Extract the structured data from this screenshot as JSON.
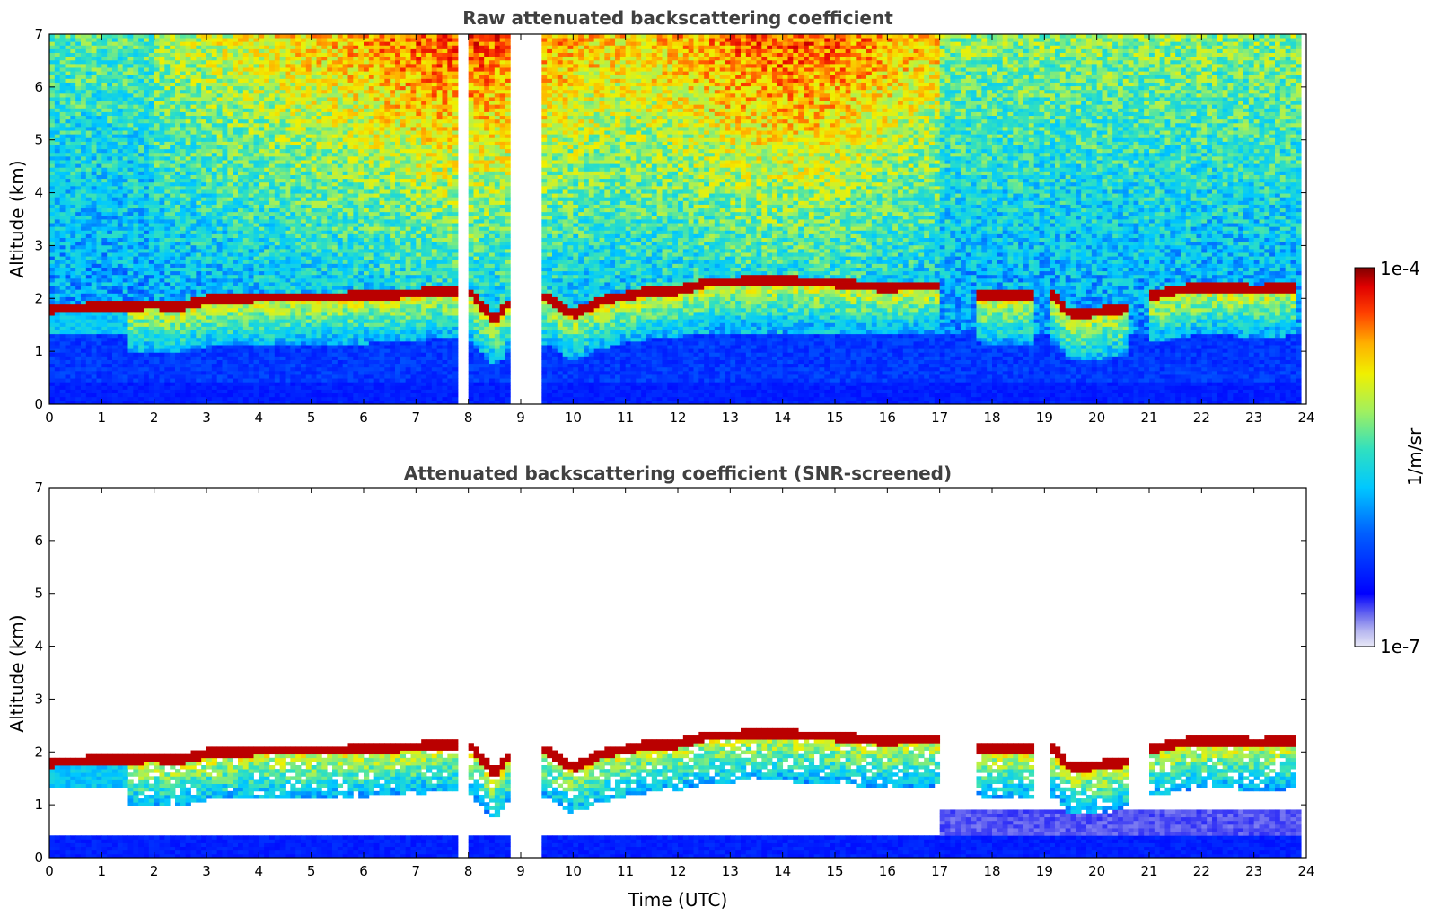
{
  "chart_data": [
    {
      "type": "heatmap",
      "title": "Raw attenuated backscattering coefficient",
      "xlabel": "",
      "ylabel": "Altitude (km)",
      "xlim": [
        0,
        24
      ],
      "ylim": [
        0,
        7
      ],
      "x_ticks": [
        "0",
        "1",
        "2",
        "3",
        "4",
        "5",
        "6",
        "7",
        "8",
        "9",
        "10",
        "11",
        "12",
        "13",
        "14",
        "15",
        "16",
        "17",
        "18",
        "19",
        "20",
        "21",
        "22",
        "23",
        "24"
      ],
      "y_ticks": [
        "0",
        "1",
        "2",
        "3",
        "4",
        "5",
        "6",
        "7"
      ],
      "data_gaps_utc": [
        [
          7.78,
          7.86
        ],
        [
          7.92,
          8.02
        ],
        [
          8.85,
          9.4
        ]
      ],
      "cloud_top_km": {
        "x": [
          0,
          1,
          2,
          2.5,
          3,
          4,
          5,
          6,
          7,
          7.5,
          8,
          8.5,
          8.8,
          9.5,
          10,
          10.5,
          11,
          11.5,
          12,
          12.5,
          13,
          13.5,
          14,
          14.5,
          15,
          15.5,
          16,
          16.5,
          17,
          17.8,
          18.5,
          19.2,
          19.5,
          20,
          20.5,
          21,
          21.5,
          22,
          22.5,
          23,
          23.8
        ],
        "y": [
          1.8,
          1.85,
          1.88,
          1.85,
          1.98,
          2.02,
          2.03,
          2.05,
          2.1,
          2.15,
          2.15,
          1.6,
          1.95,
          2.05,
          1.7,
          1.95,
          2.05,
          2.15,
          2.15,
          2.3,
          2.3,
          2.35,
          2.35,
          2.3,
          2.3,
          2.25,
          2.2,
          2.25,
          2.25,
          2.05,
          2.05,
          2.05,
          1.7,
          1.75,
          1.8,
          2.05,
          2.15,
          2.22,
          2.2,
          2.18,
          2.2
        ]
      }
    },
    {
      "type": "heatmap",
      "title": "Attenuated backscattering coefficient (SNR-screened)",
      "xlabel": "Time (UTC)",
      "ylabel": "Altitude (km)",
      "xlim": [
        0,
        24
      ],
      "ylim": [
        0,
        7
      ],
      "x_ticks": [
        "0",
        "1",
        "2",
        "3",
        "4",
        "5",
        "6",
        "7",
        "8",
        "9",
        "10",
        "11",
        "12",
        "13",
        "14",
        "15",
        "16",
        "17",
        "18",
        "19",
        "20",
        "21",
        "22",
        "23",
        "24"
      ],
      "y_ticks": [
        "0",
        "1",
        "2",
        "3",
        "4",
        "5",
        "6",
        "7"
      ],
      "data_gaps_utc": [
        [
          7.78,
          7.86
        ],
        [
          7.92,
          8.02
        ],
        [
          8.85,
          9.4
        ]
      ]
    }
  ],
  "colorbar": {
    "label": "1/m/sr",
    "max_label": "1e-4",
    "min_label": "1e-7",
    "scale": "log",
    "colormap": "jet",
    "range": [
      1e-07,
      0.0001
    ]
  }
}
